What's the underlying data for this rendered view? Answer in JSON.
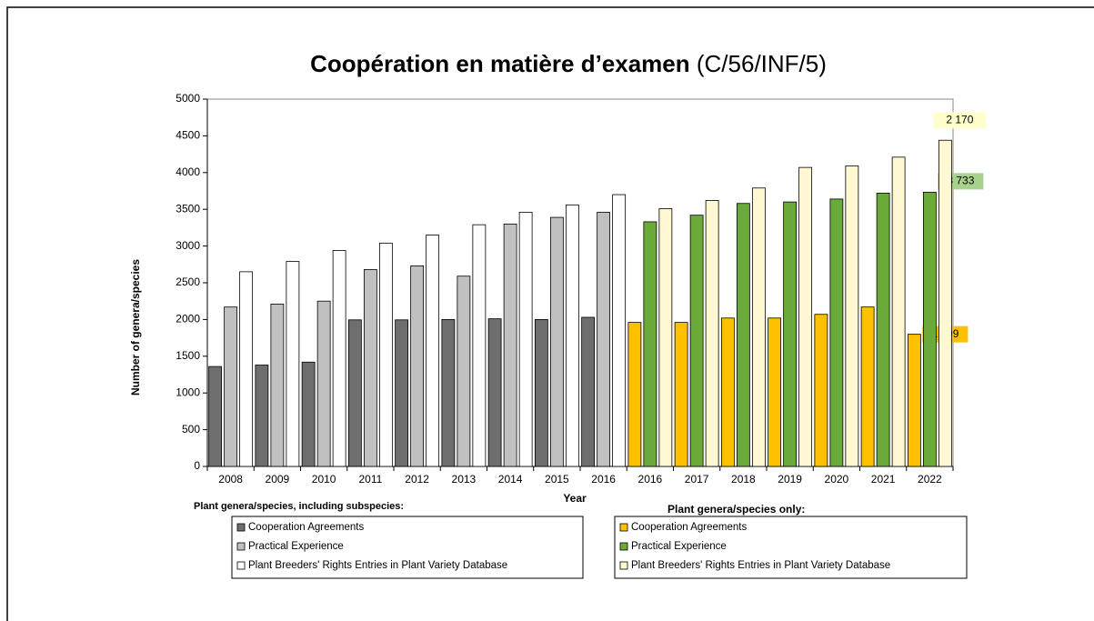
{
  "chart_data": {
    "type": "bar",
    "title": "Coopération en matière d’examen",
    "subtitle": "(C/56/INF/5)",
    "y_label": "Number of genera/species",
    "x_label": "Year",
    "categories": [
      "2008",
      "2009",
      "2010",
      "2011",
      "2012",
      "2013",
      "2014",
      "2015",
      "2016",
      "2016",
      "2017",
      "2018",
      "2019",
      "2020",
      "2021",
      "2022"
    ],
    "ylim": [
      0,
      5000
    ],
    "yticks": [
      0,
      500,
      1000,
      1500,
      2000,
      2500,
      3000,
      3500,
      4000,
      4500,
      5000
    ],
    "series_groups": [
      {
        "title": "Plant genera/species, including subspecies:",
        "series": [
          {
            "name": "Cooperation Agreements",
            "color": "#6e6e6e",
            "values": [
              1360,
              1380,
              1420,
              1995,
              1995,
              2000,
              2010,
              2000,
              2030,
              null,
              null,
              null,
              null,
              null,
              null,
              null
            ]
          },
          {
            "name": "Practical Experience",
            "color": "#c0c0c0",
            "values": [
              2170,
              2210,
              2250,
              2680,
              2730,
              2590,
              3300,
              3390,
              3460,
              null,
              null,
              null,
              null,
              null,
              null,
              null
            ]
          },
          {
            "name": "Plant Breeders' Rights Entries in Plant Variety Database",
            "color": "#ffffff",
            "values": [
              2650,
              2790,
              2940,
              3040,
              3150,
              3290,
              3460,
              3560,
              3700,
              null,
              null,
              null,
              null,
              null,
              null,
              null
            ]
          }
        ]
      },
      {
        "title": "Plant genera/species only:",
        "series": [
          {
            "name": "Cooperation Agreements",
            "color": "#ffc000",
            "values": [
              null,
              null,
              null,
              null,
              null,
              null,
              null,
              null,
              null,
              1960,
              1960,
              2020,
              2020,
              2070,
              2170,
              1799
            ],
            "value_labels": [
              null,
              null,
              null,
              null,
              null,
              null,
              null,
              null,
              null,
              null,
              null,
              null,
              null,
              null,
              null,
              "1 799"
            ]
          },
          {
            "name": "Practical Experience",
            "color": "#6aaa3a",
            "values": [
              null,
              null,
              null,
              null,
              null,
              null,
              null,
              null,
              null,
              3330,
              3420,
              3580,
              3600,
              3640,
              3720,
              3733
            ],
            "value_labels": [
              null,
              null,
              null,
              null,
              null,
              null,
              null,
              null,
              null,
              null,
              null,
              null,
              null,
              null,
              null,
              "3 733"
            ]
          },
          {
            "name": "Plant Breeders' Rights Entries in Plant Variety Database",
            "color": "#fff8d2",
            "values": [
              null,
              null,
              null,
              null,
              null,
              null,
              null,
              null,
              null,
              3510,
              3620,
              3790,
              4070,
              4090,
              4210,
              4440
            ]
          }
        ]
      }
    ],
    "annotations": [
      "2 170"
    ]
  }
}
